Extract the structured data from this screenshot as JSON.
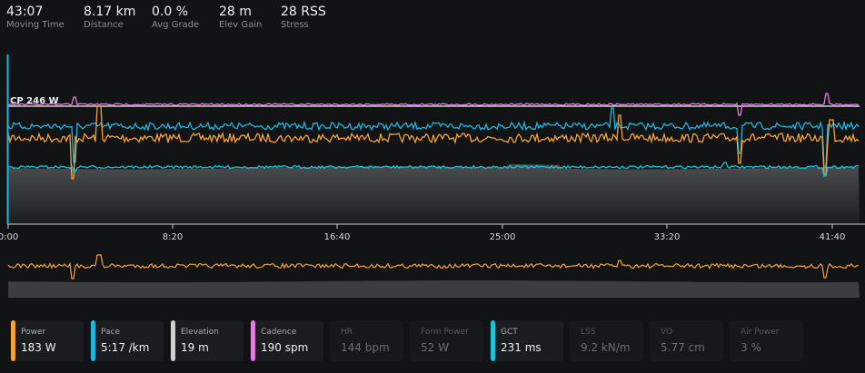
{
  "summary": [
    {
      "value": "43:07",
      "label": "Moving Time"
    },
    {
      "value": "8.17 km",
      "label": "Distance"
    },
    {
      "value": "0.0 %",
      "label": "Avg Grade"
    },
    {
      "value": "28 m",
      "label": "Elev Gain"
    },
    {
      "value": "28 RSS",
      "label": "Stress"
    }
  ],
  "chart": {
    "cp_label": "CP 246 W",
    "x_ticks": [
      "0:00",
      "8:20",
      "16:40",
      "25:00",
      "33:20",
      "41:40"
    ]
  },
  "colors": {
    "power": "#f5a23a",
    "pace": "#1fb6df",
    "gct": "#17c4d6",
    "cadence": "#e07ee0",
    "cp": "#d8d8d8",
    "elevation_fill": "#4a4b4e"
  },
  "metrics": [
    {
      "name": "Power",
      "value": "183 W",
      "color": "#f5a23a",
      "active": true
    },
    {
      "name": "Pace",
      "value": "5:17 /km",
      "color": "#1fb6df",
      "active": true
    },
    {
      "name": "Elevation",
      "value": "19 m",
      "color": "#d0d0d0",
      "active": true
    },
    {
      "name": "Cadence",
      "value": "190 spm",
      "color": "#e07ee0",
      "active": true
    },
    {
      "name": "HR",
      "value": "144 bpm",
      "color": "",
      "active": false
    },
    {
      "name": "Form Power",
      "value": "52 W",
      "color": "",
      "active": false
    },
    {
      "name": "GCT",
      "value": "231 ms",
      "color": "#17c4d6",
      "active": true
    },
    {
      "name": "LSS",
      "value": "9.2 kN/m",
      "color": "",
      "active": false
    },
    {
      "name": "VO",
      "value": "5.77 cm",
      "color": "",
      "active": false
    },
    {
      "name": "Air Power",
      "value": "3 %",
      "color": "",
      "active": false
    }
  ]
}
